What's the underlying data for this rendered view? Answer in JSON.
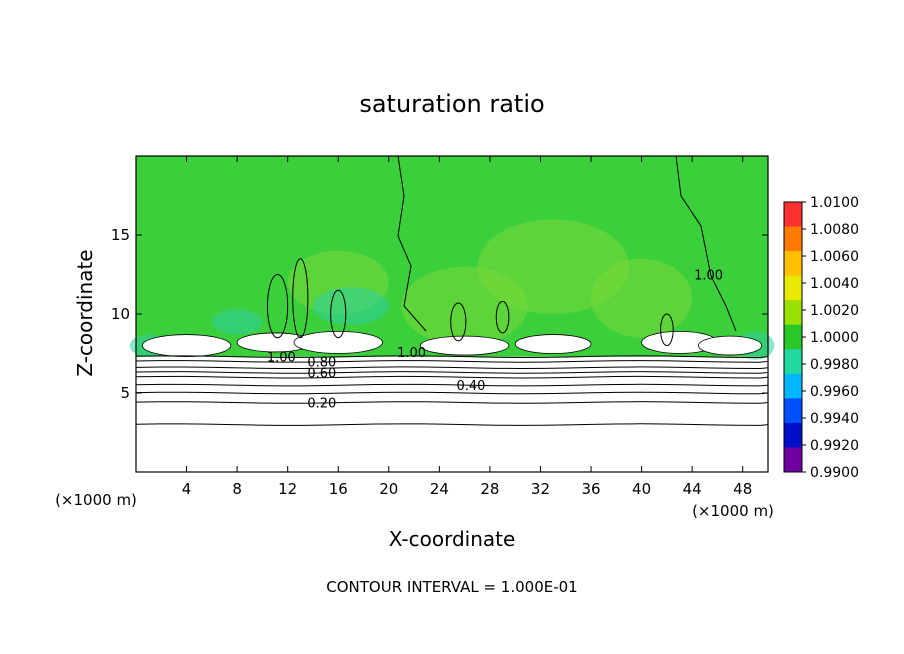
{
  "chart_data": {
    "type": "heatmap",
    "title": "saturation ratio",
    "xlabel": "X-coordinate",
    "ylabel": "Z-coordinate",
    "x_unit_left": "(×1000 m)",
    "x_unit_right": "(×1000 m)",
    "footer": "CONTOUR INTERVAL = 1.000E-01",
    "xlim": [
      0,
      50
    ],
    "ylim": [
      0,
      20
    ],
    "x_ticks": [
      4,
      8,
      12,
      16,
      20,
      24,
      28,
      32,
      36,
      40,
      44,
      48
    ],
    "y_ticks": [
      5,
      10,
      15
    ],
    "colorbar": {
      "min": 0.99,
      "max": 1.01,
      "labels": [
        "1.0100",
        "1.0080",
        "1.0060",
        "1.0040",
        "1.0020",
        "1.0000",
        "0.9980",
        "0.9960",
        "0.9940",
        "0.9920",
        "0.9900"
      ],
      "colors": [
        "#ff3030",
        "#ff7a00",
        "#ffc000",
        "#e8e800",
        "#9ae000",
        "#28c828",
        "#20d8a0",
        "#00b8ff",
        "#0050ff",
        "#0010c8",
        "#7000a0"
      ]
    },
    "contour_levels": [
      {
        "label": "0.20",
        "x": 14.7,
        "y": 4.4
      },
      {
        "label": "0.40",
        "x": 26.5,
        "y": 5.5
      },
      {
        "label": "0.60",
        "x": 14.7,
        "y": 6.3
      },
      {
        "label": "0.80",
        "x": 14.7,
        "y": 7.0
      },
      {
        "label": "1.00",
        "x": 11.5,
        "y": 7.3
      },
      {
        "label": "1.00",
        "x": 21.8,
        "y": 7.6
      },
      {
        "label": "1.00",
        "x": 45.3,
        "y": 12.5
      }
    ],
    "background_color": "#3ccf3c",
    "grid": false,
    "legend_position": "right"
  }
}
